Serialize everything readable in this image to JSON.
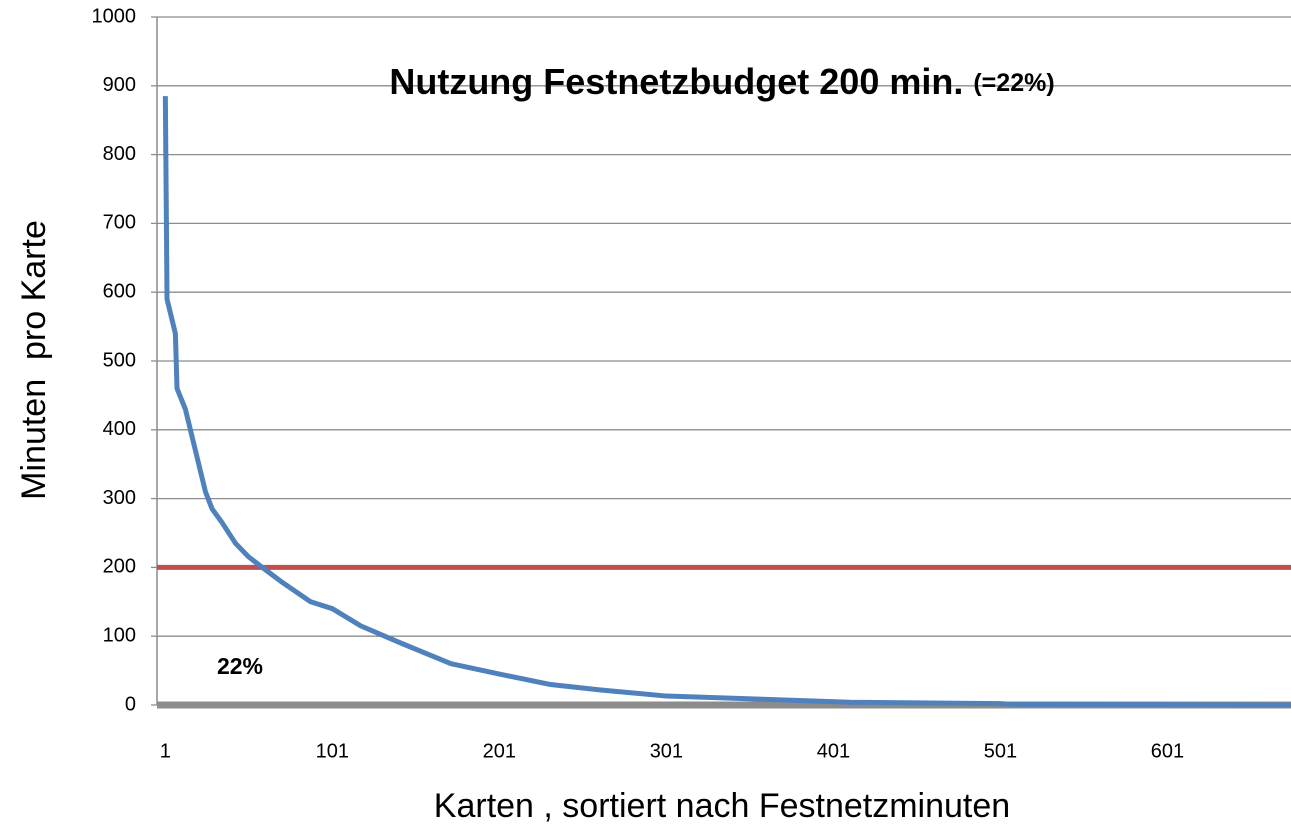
{
  "chart_data": {
    "type": "line",
    "title": "Nutzung Festnetzbudget 200 min.",
    "title_suffix": "(=22%)",
    "annotation": "22%",
    "x_label": "Karten , sortiert nach Festnetzminuten",
    "y_label": "Minuten  pro Karte",
    "x": [
      1,
      2,
      7,
      8,
      13,
      16,
      22,
      25,
      29,
      35,
      43,
      51,
      59,
      70,
      88,
      101,
      118,
      142,
      172,
      201,
      231,
      261,
      301,
      363,
      411,
      501,
      507,
      675
    ],
    "values": [
      885,
      590,
      540,
      460,
      430,
      400,
      340,
      310,
      285,
      265,
      235,
      215,
      200,
      180,
      150,
      140,
      115,
      90,
      60,
      45,
      30,
      22,
      13,
      8,
      4,
      2,
      1,
      0
    ],
    "color": "#4f81bd",
    "reference_line": {
      "value": 200,
      "color": "#c0504d"
    },
    "baseline_color": "#8c8c8c",
    "xlim": [
      -4,
      675
    ],
    "xticks": [
      1,
      101,
      201,
      301,
      401,
      501,
      601
    ],
    "ylim": [
      0,
      1000
    ],
    "yticks": [
      0,
      100,
      200,
      300,
      400,
      500,
      600,
      700,
      800,
      900,
      1000
    ],
    "grid": true
  }
}
